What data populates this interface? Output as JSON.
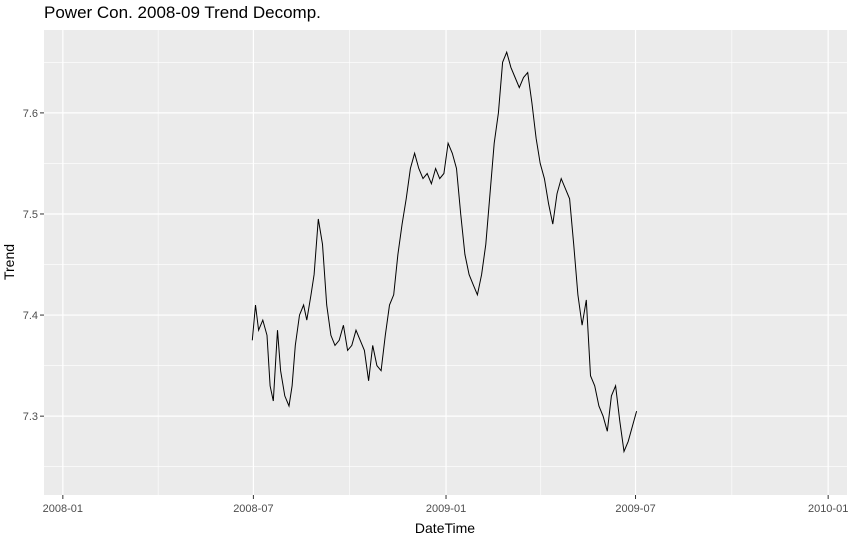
{
  "chart_data": {
    "type": "line",
    "title": "Power Con. 2008-09 Trend Decomp.",
    "xlabel": "DateTime",
    "ylabel": "Trend",
    "x_ticks": [
      "2008-01",
      "2008-07",
      "2009-01",
      "2009-07",
      "2010-01"
    ],
    "y_ticks": [
      "7.3",
      "7.4",
      "7.5",
      "7.6"
    ],
    "xlim": [
      "2007-12-14",
      "2010-01-19"
    ],
    "ylim": [
      7.222,
      7.682
    ],
    "grid": true,
    "series": [
      {
        "x": [
          "2008-06-30",
          "2008-07-03",
          "2008-07-06",
          "2008-07-10",
          "2008-07-14",
          "2008-07-17",
          "2008-07-20",
          "2008-07-24",
          "2008-07-27",
          "2008-07-31",
          "2008-08-04",
          "2008-08-07",
          "2008-08-10",
          "2008-08-14",
          "2008-08-18",
          "2008-08-21",
          "2008-08-25",
          "2008-08-28",
          "2008-09-01",
          "2008-09-05",
          "2008-09-09",
          "2008-09-13",
          "2008-09-17",
          "2008-09-21",
          "2008-09-25",
          "2008-09-29",
          "2008-10-03",
          "2008-10-07",
          "2008-10-11",
          "2008-10-15",
          "2008-10-19",
          "2008-10-23",
          "2008-10-27",
          "2008-10-31",
          "2008-11-04",
          "2008-11-08",
          "2008-11-12",
          "2008-11-16",
          "2008-11-20",
          "2008-11-24",
          "2008-11-28",
          "2008-12-02",
          "2008-12-06",
          "2008-12-10",
          "2008-12-14",
          "2008-12-18",
          "2008-12-22",
          "2008-12-26",
          "2008-12-30",
          "2009-01-03",
          "2009-01-07",
          "2009-01-11",
          "2009-01-15",
          "2009-01-19",
          "2009-01-23",
          "2009-01-27",
          "2009-01-31",
          "2009-02-04",
          "2009-02-08",
          "2009-02-12",
          "2009-02-16",
          "2009-02-20",
          "2009-02-24",
          "2009-02-28",
          "2009-03-04",
          "2009-03-08",
          "2009-03-12",
          "2009-03-16",
          "2009-03-20",
          "2009-03-24",
          "2009-03-28",
          "2009-04-01",
          "2009-04-05",
          "2009-04-09",
          "2009-04-13",
          "2009-04-17",
          "2009-04-21",
          "2009-04-25",
          "2009-04-29",
          "2009-05-03",
          "2009-05-07",
          "2009-05-11",
          "2009-05-15",
          "2009-05-19",
          "2009-05-23",
          "2009-05-27",
          "2009-05-31",
          "2009-06-04",
          "2009-06-08",
          "2009-06-12",
          "2009-06-16",
          "2009-06-20",
          "2009-06-24",
          "2009-06-28",
          "2009-07-02"
        ],
        "values": [
          7.375,
          7.41,
          7.385,
          7.395,
          7.38,
          7.33,
          7.315,
          7.385,
          7.345,
          7.32,
          7.31,
          7.33,
          7.37,
          7.4,
          7.41,
          7.395,
          7.42,
          7.44,
          7.495,
          7.47,
          7.41,
          7.38,
          7.37,
          7.375,
          7.39,
          7.365,
          7.37,
          7.385,
          7.375,
          7.365,
          7.335,
          7.37,
          7.35,
          7.345,
          7.38,
          7.41,
          7.42,
          7.46,
          7.49,
          7.515,
          7.545,
          7.56,
          7.545,
          7.535,
          7.54,
          7.53,
          7.545,
          7.535,
          7.54,
          7.57,
          7.56,
          7.545,
          7.5,
          7.46,
          7.44,
          7.43,
          7.42,
          7.44,
          7.47,
          7.52,
          7.57,
          7.6,
          7.65,
          7.66,
          7.645,
          7.635,
          7.625,
          7.635,
          7.64,
          7.61,
          7.575,
          7.55,
          7.535,
          7.51,
          7.49,
          7.52,
          7.535,
          7.525,
          7.515,
          7.47,
          7.42,
          7.39,
          7.415,
          7.34,
          7.33,
          7.31,
          7.3,
          7.285,
          7.32,
          7.33,
          7.295,
          7.265,
          7.275,
          7.29,
          7.305
        ]
      }
    ]
  }
}
